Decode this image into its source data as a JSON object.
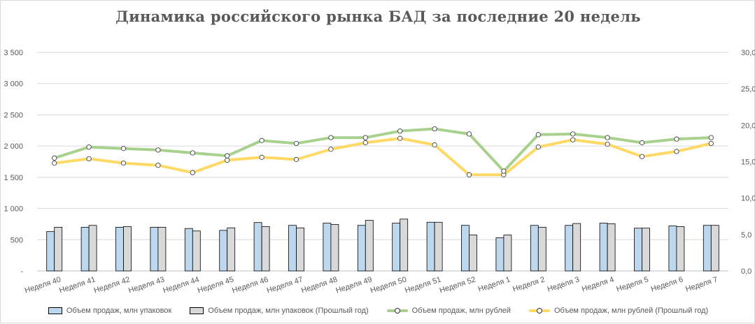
{
  "chart_data": {
    "type": "bar",
    "title": "Динамика российского рынка БАД за последние 20 недель",
    "categories": [
      "Неделя 40",
      "Неделя 41",
      "Неделя 42",
      "Неделя 43",
      "Неделя 44",
      "Неделя 45",
      "Неделя 46",
      "Неделя 47",
      "Неделя 48",
      "Неделя 49",
      "Неделя 50",
      "Неделя 51",
      "Неделя 52",
      "Неделя 1",
      "Неделя 2",
      "Неделя 3",
      "Неделя 4",
      "Неделя 5",
      "Неделя 6",
      "Неделя 7"
    ],
    "y_left": {
      "range": [
        0,
        3500
      ],
      "ticks": [
        0,
        500,
        1000,
        1500,
        2000,
        2500,
        3000,
        3500
      ],
      "tick_labels": [
        "-",
        "500",
        "1 000",
        "1 500",
        "2 000",
        "2 500",
        "3 000",
        "3 500"
      ],
      "gridlines": true
    },
    "y_right": {
      "range": [
        0,
        30
      ],
      "ticks": [
        0,
        5,
        10,
        15,
        20,
        25,
        30
      ],
      "tick_labels": [
        "0,0",
        "5,0",
        "10,0",
        "15,0",
        "20,0",
        "25,0",
        "30,0"
      ]
    },
    "series": [
      {
        "name": "Объем продаж, млн упаковок",
        "kind": "bar",
        "axis": "left",
        "color": "#bdd7ee",
        "values": [
          630,
          700,
          700,
          700,
          680,
          650,
          775,
          730,
          765,
          730,
          765,
          780,
          730,
          530,
          730,
          730,
          765,
          685,
          720,
          730
        ]
      },
      {
        "name": "Объем продаж, млн упаковок (Прошлый год)",
        "kind": "bar",
        "axis": "left",
        "color": "#d9d9d9",
        "values": [
          700,
          730,
          710,
          700,
          640,
          690,
          710,
          690,
          745,
          810,
          830,
          780,
          575,
          575,
          700,
          760,
          755,
          685,
          710,
          730
        ]
      },
      {
        "name": "Объем продаж, млн рублей",
        "kind": "line",
        "axis": "right",
        "color": "#a9d18e",
        "values": [
          15.5,
          17.0,
          16.8,
          16.6,
          16.2,
          15.8,
          17.9,
          17.5,
          18.3,
          18.3,
          19.2,
          19.5,
          18.8,
          13.7,
          18.7,
          18.8,
          18.3,
          17.6,
          18.1,
          18.3
        ]
      },
      {
        "name": "Объем продаж, млн рублей (Прошлый год)",
        "kind": "line",
        "axis": "right",
        "color": "#ffd966",
        "values": [
          14.8,
          15.4,
          14.8,
          14.5,
          13.5,
          15.2,
          15.6,
          15.3,
          16.7,
          17.6,
          18.2,
          17.3,
          13.2,
          13.2,
          17.0,
          18.0,
          17.4,
          15.7,
          16.4,
          17.5
        ]
      }
    ],
    "legend": "bottom",
    "grid": true
  }
}
